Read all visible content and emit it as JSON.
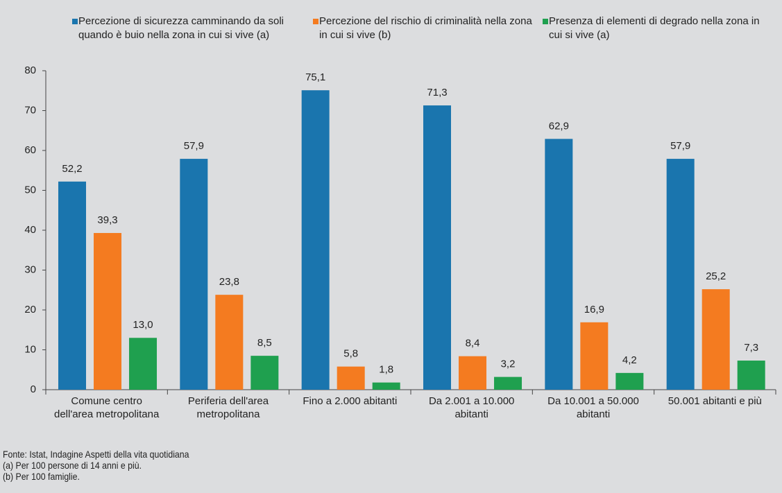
{
  "chart_data": {
    "type": "bar",
    "categories": [
      "Comune centro dell'area metropolitana",
      "Periferia dell'area metropolitana",
      "Fino a 2.000 abitanti",
      "Da 2.001 a 10.000 abitanti",
      "Da 10.001 a 50.000 abitanti",
      "50.001 abitanti e più"
    ],
    "series": [
      {
        "name": "Percezione di sicurezza camminando da soli quando è buio nella zona in cui si vive (a)",
        "color": "#1a75ae",
        "values": [
          52.2,
          57.9,
          75.1,
          71.3,
          62.9,
          57.9
        ],
        "value_labels": [
          "52,2",
          "57,9",
          "75,1",
          "71,3",
          "62,9",
          "57,9"
        ]
      },
      {
        "name": "Percezione del rischio di criminalità nella zona in cui si vive (b)",
        "color": "#f47b20",
        "values": [
          39.3,
          23.8,
          5.8,
          8.4,
          16.9,
          25.2
        ],
        "value_labels": [
          "39,3",
          "23,8",
          "5,8",
          "8,4",
          "16,9",
          "25,2"
        ]
      },
      {
        "name": "Presenza di elementi di degrado nella zona in cui si vive (a)",
        "color": "#1fa04f",
        "values": [
          13.0,
          8.5,
          1.8,
          3.2,
          4.2,
          7.3
        ],
        "value_labels": [
          "13,0",
          "8,5",
          "1,8",
          "3,2",
          "4,2",
          "7,3"
        ]
      }
    ],
    "ylim": [
      0,
      80
    ],
    "yticks": [
      0,
      10,
      20,
      30,
      40,
      50,
      60,
      70,
      80
    ],
    "grid": false,
    "notes": [
      "Fonte: Istat, Indagine Aspetti della vita quotidiana",
      "(a) Per 100 persone di 14 anni e più.",
      "(b) Per 100 famiglie."
    ]
  }
}
